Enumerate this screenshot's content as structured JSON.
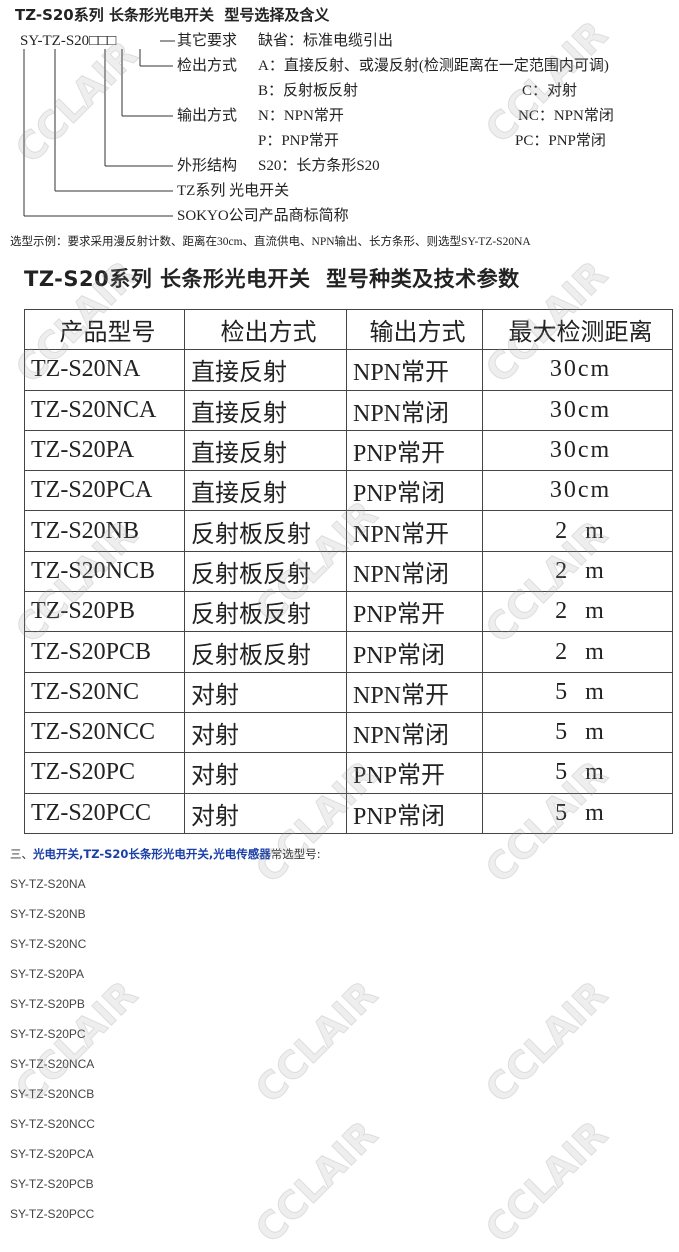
{
  "header": {
    "title": "TZ-S20系列 长条形光电开关  型号选择及含义"
  },
  "code_diagram": {
    "code": "SY-TZ-S20□□□",
    "fields": [
      {
        "label": "其它要求",
        "options": [
          "缺省：标准电缆引出"
        ]
      },
      {
        "label": "检出方式",
        "options": [
          "A：直接反射、或漫反射(检测距离在一定范围内可调)",
          "B：反射板反射",
          "C：对射"
        ]
      },
      {
        "label": "输出方式",
        "options": [
          "N：NPN常开",
          "NC：NPN常闭",
          "P：PNP常开",
          "PC：PNP常闭"
        ]
      },
      {
        "label": "外形结构",
        "options": [
          "S20：长方条形S20"
        ]
      },
      {
        "label": "TZ系列 光电开关",
        "options": []
      },
      {
        "label": "SOKYO公司产品商标简称",
        "options": []
      }
    ],
    "example": "选型示例：要求采用漫反射计数、距离在30cm、直流供电、NPN输出、长方条形、则选型SY-TZ-S20NA"
  },
  "table": {
    "title": "TZ-S20系列 长条形光电开关  型号种类及技术参数",
    "columns": [
      "产品型号",
      "检出方式",
      "输出方式",
      "最大检测距离"
    ],
    "rows": [
      [
        "TZ-S20NA",
        "直接反射",
        "NPN常开",
        "30cm"
      ],
      [
        "TZ-S20NCA",
        "直接反射",
        "NPN常闭",
        "30cm"
      ],
      [
        "TZ-S20PA",
        "直接反射",
        "PNP常开",
        "30cm"
      ],
      [
        "TZ-S20PCA",
        "直接反射",
        "PNP常闭",
        "30cm"
      ],
      [
        "TZ-S20NB",
        "反射板反射",
        "NPN常开",
        "2  m"
      ],
      [
        "TZ-S20NCB",
        "反射板反射",
        "NPN常闭",
        "2  m"
      ],
      [
        "TZ-S20PB",
        "反射板反射",
        "PNP常开",
        "2  m"
      ],
      [
        "TZ-S20PCB",
        "反射板反射",
        "PNP常闭",
        "2  m"
      ],
      [
        "TZ-S20NC",
        "对射",
        "NPN常开",
        "5  m"
      ],
      [
        "TZ-S20NCC",
        "对射",
        "NPN常闭",
        "5  m"
      ],
      [
        "TZ-S20PC",
        "对射",
        "PNP常开",
        "5  m"
      ],
      [
        "TZ-S20PCC",
        "对射",
        "PNP常闭",
        "5  m"
      ]
    ]
  },
  "list": {
    "prefix": "三、",
    "links": [
      "光电开关",
      "TZ-S20长条形光电开关",
      "光电传感器"
    ],
    "separator": ",",
    "suffix": "常选型号:",
    "items": [
      "SY-TZ-S20NA",
      "SY-TZ-S20NB",
      "SY-TZ-S20NC",
      "SY-TZ-S20PA",
      "SY-TZ-S20PB",
      "SY-TZ-S20PC",
      "SY-TZ-S20NCA",
      "SY-TZ-S20NCB",
      "SY-TZ-S20NCC",
      "SY-TZ-S20PCA",
      "SY-TZ-S20PCB",
      "SY-TZ-S20PCC"
    ]
  },
  "watermark": "CCLAIR"
}
